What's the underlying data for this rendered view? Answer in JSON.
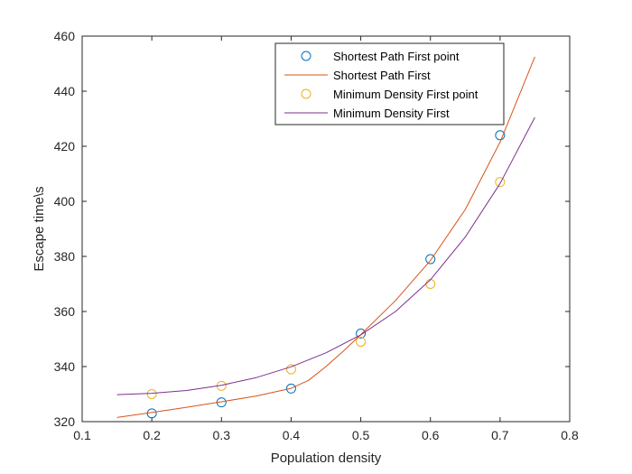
{
  "chart_data": {
    "type": "scatter",
    "xlabel": "Population density",
    "ylabel": "Escape time\\s",
    "xlim": [
      0.1,
      0.8
    ],
    "ylim": [
      320,
      460
    ],
    "xticks": [
      "0.1",
      "0.2",
      "0.3",
      "0.4",
      "0.5",
      "0.6",
      "0.7",
      "0.8"
    ],
    "yticks": [
      "320",
      "340",
      "360",
      "380",
      "400",
      "420",
      "440",
      "460"
    ],
    "grid": false,
    "legend_position": "top-right",
    "series": [
      {
        "name": "Shortest Path First point",
        "kind": "points",
        "color": "#0072BD",
        "x": [
          0.2,
          0.3,
          0.4,
          0.5,
          0.6,
          0.7
        ],
        "y": [
          323,
          327,
          332,
          352,
          379,
          424
        ]
      },
      {
        "name": "Shortest Path First",
        "kind": "line",
        "color": "#D95319",
        "x": [
          0.15,
          0.2,
          0.25,
          0.3,
          0.35,
          0.4,
          0.425,
          0.45,
          0.475,
          0.5,
          0.55,
          0.6,
          0.65,
          0.7,
          0.75
        ],
        "y": [
          321.5,
          323.3,
          325.2,
          327.2,
          329.3,
          332.1,
          335.0,
          340.0,
          345.6,
          351.6,
          364.0,
          378.5,
          397.0,
          421.5,
          452.5
        ]
      },
      {
        "name": "Minimum Density First point",
        "kind": "points",
        "color": "#EDB120",
        "x": [
          0.2,
          0.3,
          0.4,
          0.5,
          0.6,
          0.7
        ],
        "y": [
          330,
          333,
          339,
          349,
          370,
          407
        ]
      },
      {
        "name": "Minimum Density First",
        "kind": "line",
        "color": "#7E2F8E",
        "x": [
          0.15,
          0.2,
          0.25,
          0.3,
          0.35,
          0.4,
          0.45,
          0.5,
          0.55,
          0.6,
          0.65,
          0.7,
          0.75
        ],
        "y": [
          329.8,
          330.3,
          331.3,
          333.2,
          336.0,
          339.9,
          345.0,
          351.5,
          360.0,
          371.5,
          387.0,
          406.5,
          430.5
        ]
      }
    ]
  }
}
